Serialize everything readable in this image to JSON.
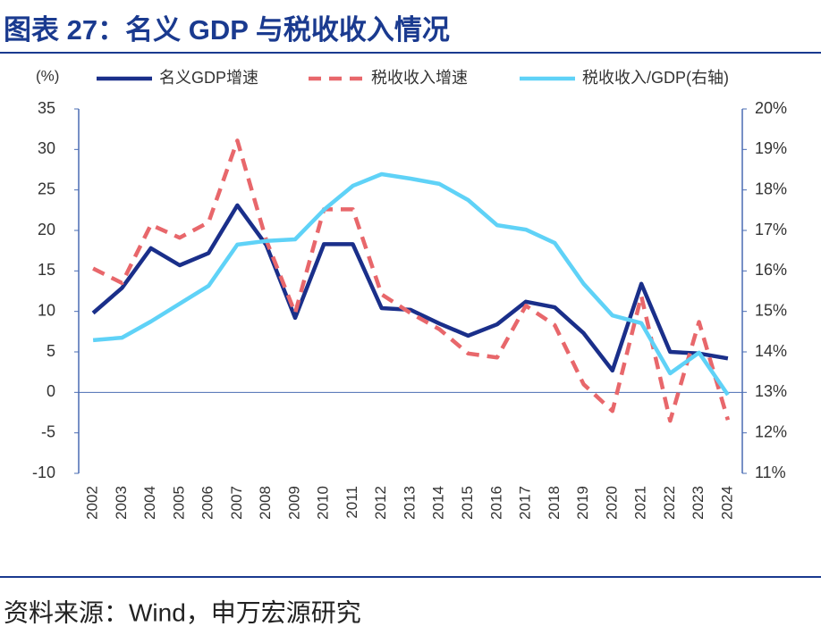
{
  "chart_data": {
    "type": "line",
    "title": "图表 27：名义 GDP 与税收收入情况",
    "source": "资料来源：Wind，申万宏源研究",
    "y_label": "(%)",
    "categories": [
      "2002",
      "2003",
      "2004",
      "2005",
      "2006",
      "2007",
      "2008",
      "2009",
      "2010",
      "2011",
      "2012",
      "2013",
      "2014",
      "2015",
      "2016",
      "2017",
      "2018",
      "2019",
      "2020",
      "2021",
      "2022",
      "2023",
      "2024"
    ],
    "series": [
      {
        "name": "名义GDP增速",
        "color": "#1a2f8a",
        "line_style": "solid",
        "values": [
          9.8,
          12.9,
          17.8,
          15.7,
          17.2,
          23.1,
          18.2,
          9.2,
          18.3,
          18.3,
          10.4,
          10.2,
          8.5,
          7.0,
          8.4,
          11.2,
          10.5,
          7.3,
          2.7,
          13.4,
          5.0,
          4.8,
          4.2
        ]
      },
      {
        "name": "税收收入增速",
        "color": "#e8676b",
        "line_style": "dashed",
        "values": [
          15.3,
          13.5,
          20.7,
          19.1,
          21.0,
          31.1,
          18.8,
          9.8,
          22.6,
          22.6,
          12.1,
          9.8,
          7.8,
          4.8,
          4.3,
          10.7,
          8.3,
          1.0,
          -2.3,
          11.9,
          -3.5,
          8.7,
          -3.4
        ]
      },
      {
        "name": "税收收入/GDP(右轴)",
        "color": "#5fd2f7",
        "line_style": "solid",
        "axis": "y2",
        "values": [
          14.29,
          14.35,
          14.75,
          15.19,
          15.63,
          16.65,
          16.74,
          16.78,
          17.51,
          18.1,
          18.39,
          18.28,
          18.15,
          17.75,
          17.13,
          17.02,
          16.69,
          15.68,
          14.9,
          14.71,
          13.47,
          13.98,
          12.94
        ]
      }
    ],
    "ylim": [
      -10,
      35
    ],
    "yticks": [
      -10,
      -5,
      0,
      5,
      10,
      15,
      20,
      25,
      30,
      35
    ],
    "y2lim": [
      11,
      20
    ],
    "y2ticks": [
      {
        "value": 11,
        "label": "11%"
      },
      {
        "value": 12,
        "label": "12%"
      },
      {
        "value": 13,
        "label": "13%"
      },
      {
        "value": 14,
        "label": "14%"
      },
      {
        "value": 15,
        "label": "15%"
      },
      {
        "value": 16,
        "label": "16%"
      },
      {
        "value": 17,
        "label": "17%"
      },
      {
        "value": 18,
        "label": "18%"
      },
      {
        "value": 19,
        "label": "19%"
      },
      {
        "value": 20,
        "label": "20%"
      }
    ],
    "grid": false,
    "legend": "top"
  }
}
